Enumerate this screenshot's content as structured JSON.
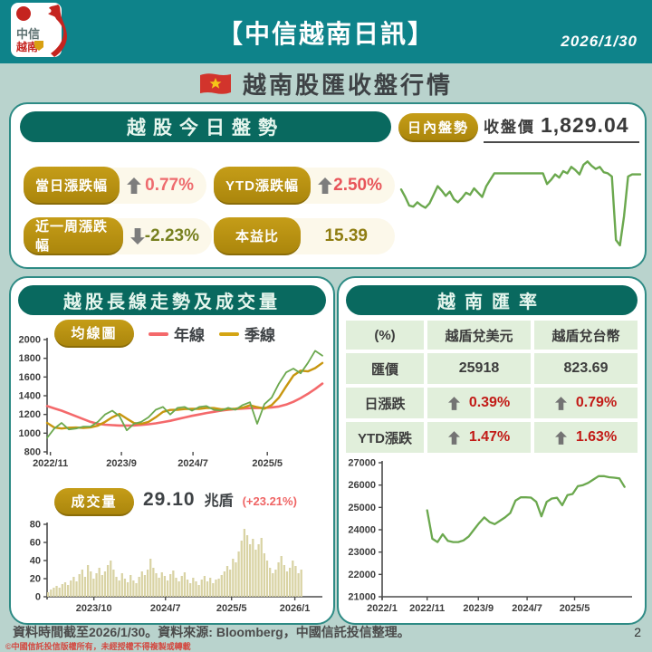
{
  "header": {
    "brand_line1": "中信",
    "brand_line2": "越南",
    "title": "【中信越南日訊】",
    "date": "2026/1/30"
  },
  "page_title": "越南股匯收盤行情",
  "today_panel": {
    "title": "越股今日盤勢",
    "badges": [
      {
        "label": "當日漲跌幅",
        "direction": "up",
        "value": "0.77%"
      },
      {
        "label": "YTD漲跌幅",
        "direction": "up",
        "value": "2.50%"
      },
      {
        "label": "近一周漲跌幅",
        "direction": "down",
        "value": "-2.23%"
      },
      {
        "label": "本益比",
        "direction": "none",
        "value": "15.39"
      }
    ],
    "intraday_label": "日內盤勢",
    "close_label": "收盤價",
    "close_value": "1,829.04"
  },
  "longterm_panel": {
    "title": "越股長線走勢及成交量",
    "ma_badge": "均線圖",
    "legend": [
      {
        "label": "年線",
        "color": "#f4696b"
      },
      {
        "label": "季線",
        "color": "#d4a514"
      }
    ],
    "volume_badge": "成交量",
    "volume_value": "29.10",
    "volume_unit": "兆盾",
    "volume_change": "(+23.21%)"
  },
  "fx_panel": {
    "title": "越南匯率",
    "table": {
      "headers": [
        "(%)",
        "越盾兌美元",
        "越盾兌台幣"
      ],
      "rows": [
        {
          "label": "匯價",
          "usd": "25918",
          "twd": "823.69",
          "type": "plain"
        },
        {
          "label": "日漲跌",
          "usd": "0.39%",
          "twd": "0.79%",
          "type": "up"
        },
        {
          "label": "YTD漲跌",
          "usd": "1.47%",
          "twd": "1.63%",
          "type": "up"
        }
      ]
    }
  },
  "footer": {
    "source": "資料時間截至2026/1/30。資料來源: Bloomberg，中國信託投信整理。",
    "copyright": "©中國信託投信版權所有，未經授權不得複製或轉載",
    "page": "2"
  },
  "colors": {
    "header_teal": "#0e838a",
    "panel_teal": "#09695f",
    "card_border": "#2e8b85",
    "gold_badge": "#b8910f",
    "chart_green": "#6ba84e",
    "chart_red": "#f4696b",
    "chart_gold": "#c8960f",
    "volume_bar": "#d9d3a4",
    "value_red": "#c21b17",
    "value_olive": "#77801f"
  },
  "chart_data": [
    {
      "id": "intraday",
      "type": "line",
      "title": "日內盤勢",
      "ylim": [
        1752,
        1848
      ],
      "margins": {
        "l": 3,
        "t": 5,
        "r": 3,
        "b": 5
      },
      "series": [
        {
          "name": "VN指數日內走勢",
          "color": "#6ba84e",
          "width": 2.4,
          "values": [
            1815,
            1808,
            1800,
            1799,
            1803,
            1800,
            1798,
            1802,
            1810,
            1818,
            1814,
            1809,
            1813,
            1806,
            1803,
            1807,
            1812,
            1810,
            1816,
            1812,
            1808,
            1818,
            1824,
            1830,
            1830,
            1830,
            1830,
            1830,
            1830,
            1830,
            1830,
            1830,
            1830,
            1830,
            1830,
            1830,
            1820,
            1824,
            1829,
            1826,
            1832,
            1830,
            1836,
            1833,
            1829,
            1838,
            1841,
            1837,
            1834,
            1836,
            1831,
            1830,
            1827,
            1768,
            1763,
            1790,
            1827,
            1829,
            1829,
            1829
          ]
        }
      ]
    },
    {
      "id": "longterm",
      "type": "line",
      "title": "越股長線走勢",
      "ylim": [
        800,
        2000
      ],
      "yticks": [
        800,
        1000,
        1200,
        1400,
        1600,
        1800,
        2000
      ],
      "xlabels": [
        {
          "t": "2022/11",
          "f": 0.012
        },
        {
          "t": "2023/9",
          "f": 0.27
        },
        {
          "t": "2024/7",
          "f": 0.53
        },
        {
          "t": "2025/5",
          "f": 0.8
        }
      ],
      "margins": {
        "l": 38,
        "t": 6,
        "r": 8,
        "b": 22
      },
      "series": [
        {
          "name": "年線",
          "color": "#f4696b",
          "width": 2.6,
          "values": [
            1290,
            1265,
            1240,
            1210,
            1180,
            1150,
            1120,
            1100,
            1090,
            1085,
            1082,
            1082,
            1083,
            1088,
            1095,
            1105,
            1118,
            1132,
            1150,
            1168,
            1185,
            1200,
            1215,
            1228,
            1240,
            1250,
            1258,
            1263,
            1267,
            1268,
            1270,
            1275,
            1285,
            1305,
            1335,
            1375,
            1420,
            1472,
            1530
          ]
        },
        {
          "name": "季線",
          "color": "#c8960f",
          "width": 2.4,
          "values": [
            1110,
            1060,
            1050,
            1058,
            1060,
            1055,
            1062,
            1080,
            1120,
            1170,
            1205,
            1155,
            1108,
            1100,
            1120,
            1170,
            1228,
            1248,
            1250,
            1258,
            1260,
            1260,
            1268,
            1268,
            1256,
            1256,
            1262,
            1272,
            1298,
            1278,
            1262,
            1300,
            1380,
            1500,
            1615,
            1668,
            1660,
            1695,
            1750
          ]
        },
        {
          "name": "VN指數",
          "color": "#6ba84e",
          "width": 1.8,
          "values": [
            950,
            1050,
            1110,
            1040,
            1050,
            1070,
            1070,
            1120,
            1200,
            1240,
            1180,
            1030,
            1100,
            1120,
            1170,
            1250,
            1280,
            1200,
            1270,
            1280,
            1240,
            1280,
            1290,
            1250,
            1240,
            1270,
            1250,
            1300,
            1330,
            1100,
            1310,
            1380,
            1530,
            1650,
            1690,
            1640,
            1750,
            1880,
            1829
          ]
        }
      ]
    },
    {
      "id": "volume",
      "type": "bar",
      "title": "成交量(兆盾)",
      "ylim": [
        0,
        80
      ],
      "yticks": [
        0,
        20,
        40,
        60,
        80
      ],
      "xlabels": [
        {
          "t": "2023/10",
          "f": 0.17
        },
        {
          "t": "2024/7",
          "f": 0.43
        },
        {
          "t": "2025/5",
          "f": 0.67
        },
        {
          "t": "2026/1",
          "f": 0.9
        }
      ],
      "margins": {
        "l": 38,
        "t": 4,
        "r": 8,
        "b": 20
      },
      "baseline": true,
      "bar_color": "#d9d3a4",
      "x0": 0,
      "x1": 0.93,
      "values": [
        5,
        8,
        10,
        12,
        10,
        14,
        16,
        13,
        18,
        22,
        17,
        25,
        30,
        22,
        35,
        28,
        20,
        26,
        32,
        24,
        28,
        35,
        40,
        30,
        22,
        18,
        26,
        20,
        16,
        24,
        18,
        15,
        22,
        28,
        24,
        30,
        42,
        32,
        26,
        21,
        27,
        23,
        18,
        25,
        29,
        21,
        17,
        23,
        27,
        19,
        15,
        21,
        17,
        13,
        19,
        23,
        17,
        21,
        15,
        19,
        20,
        24,
        28,
        34,
        30,
        42,
        38,
        50,
        62,
        75,
        68,
        58,
        64,
        52,
        58,
        65,
        48,
        40,
        32,
        26,
        30,
        38,
        45,
        35,
        28,
        32,
        40,
        34,
        26,
        30
      ]
    },
    {
      "id": "fx",
      "type": "line",
      "title": "越盾兌美元走勢",
      "ylim": [
        21000,
        27000
      ],
      "yticks": [
        21000,
        22000,
        23000,
        24000,
        25000,
        26000,
        27000
      ],
      "xlabels": [
        {
          "t": "2022/1",
          "f": 0.0
        },
        {
          "t": "2022/11",
          "f": 0.18
        },
        {
          "t": "2023/9",
          "f": 0.385
        },
        {
          "t": "2024/7",
          "f": 0.58
        },
        {
          "t": "2025/5",
          "f": 0.77
        }
      ],
      "margins": {
        "l": 48,
        "t": 8,
        "r": 10,
        "b": 22
      },
      "baseline": true,
      "series": [
        {
          "name": "USD/VND",
          "color": "#6ba84e",
          "width": 2.3,
          "x0": 0.18,
          "x1": 0.97,
          "values": [
            24870,
            23600,
            23450,
            23800,
            23500,
            23450,
            23450,
            23520,
            23700,
            24000,
            24300,
            24550,
            24350,
            24250,
            24400,
            24550,
            24750,
            25300,
            25450,
            25450,
            25440,
            25250,
            24600,
            25250,
            25400,
            25430,
            25100,
            25550,
            25600,
            25950,
            26000,
            26100,
            26250,
            26400,
            26400,
            26350,
            26330,
            26300,
            25918
          ]
        }
      ]
    }
  ]
}
